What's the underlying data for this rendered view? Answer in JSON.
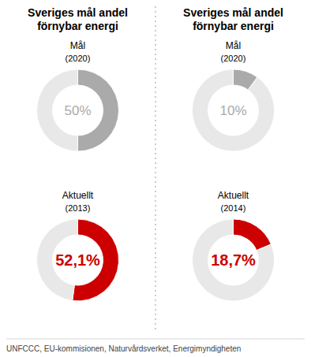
{
  "chart_data": [
    {
      "type": "donut",
      "title": "Mål",
      "subtitle": "(2020)",
      "annotations": [
        "Sveriges mål andel",
        "förnybar energi"
      ],
      "values": [
        50,
        50
      ],
      "value_labels": [
        "50%",
        null
      ],
      "colors": [
        "#aaaaaa",
        "#e8e8e8"
      ]
    },
    {
      "type": "donut",
      "title": "Mål",
      "subtitle": "(2020)",
      "annotations": [
        "Sveriges mål andel",
        "förnybar energi"
      ],
      "values": [
        10,
        90
      ],
      "value_labels": [
        "10%",
        null
      ],
      "colors": [
        "#aaaaaa",
        "#e8e8e8"
      ]
    },
    {
      "type": "donut",
      "title": "Aktuellt",
      "subtitle": "(2013)",
      "values": [
        52.1,
        47.9
      ],
      "value_labels": [
        "52,1%",
        null
      ],
      "colors": [
        "#cc0000",
        "#e8e8e8"
      ]
    },
    {
      "type": "donut",
      "title": "Aktuellt",
      "subtitle": "(2014)",
      "values": [
        18.7,
        81.3
      ],
      "value_labels": [
        "18,7%",
        null
      ],
      "colors": [
        "#cc0000",
        "#e8e8e8"
      ]
    }
  ],
  "footer": "UNFCCC, EU-kommisionen, Naturvårdsverket, Energimyndigheten"
}
